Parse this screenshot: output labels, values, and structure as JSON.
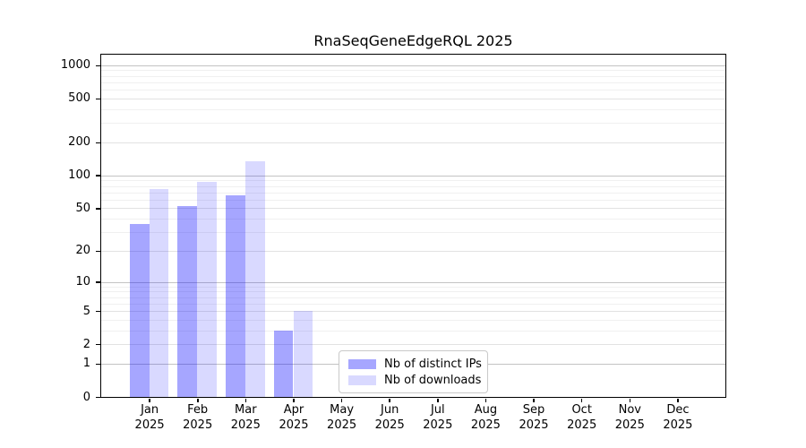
{
  "chart_data": {
    "type": "bar",
    "title": "RnaSeqGeneEdgeRQL 2025",
    "year": "2025",
    "categories": [
      "Jan",
      "Feb",
      "Mar",
      "Apr",
      "May",
      "Jun",
      "Jul",
      "Aug",
      "Sep",
      "Oct",
      "Nov",
      "Dec"
    ],
    "x_tick_labels": [
      {
        "month": "Jan",
        "year": "2025"
      },
      {
        "month": "Feb",
        "year": "2025"
      },
      {
        "month": "Mar",
        "year": "2025"
      },
      {
        "month": "Apr",
        "year": "2025"
      },
      {
        "month": "May",
        "year": "2025"
      },
      {
        "month": "Jun",
        "year": "2025"
      },
      {
        "month": "Jul",
        "year": "2025"
      },
      {
        "month": "Aug",
        "year": "2025"
      },
      {
        "month": "Sep",
        "year": "2025"
      },
      {
        "month": "Oct",
        "year": "2025"
      },
      {
        "month": "Nov",
        "year": "2025"
      },
      {
        "month": "Dec",
        "year": "2025"
      }
    ],
    "series": [
      {
        "name": "Nb of distinct IPs",
        "color": "rgba(0,0,255,0.35)",
        "values": [
          36,
          52,
          66,
          3,
          0,
          0,
          0,
          0,
          0,
          0,
          0,
          0
        ]
      },
      {
        "name": "Nb of downloads",
        "color": "rgba(0,0,255,0.15)",
        "values": [
          75,
          87,
          135,
          5,
          0,
          0,
          0,
          0,
          0,
          0,
          0,
          0
        ]
      }
    ],
    "yscale": "log1p",
    "yticks": [
      1000,
      500,
      200,
      100,
      50,
      20,
      10,
      5,
      2,
      1,
      0
    ],
    "ylim": [
      0,
      1000
    ],
    "xlabel": "",
    "ylabel": "",
    "grid": true,
    "legend_position": "bottom-center"
  }
}
